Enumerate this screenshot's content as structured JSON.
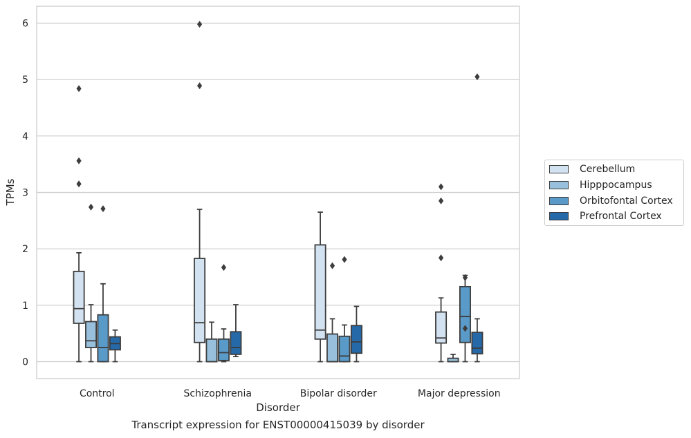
{
  "caption": "Transcript expression for ENST00000415039 by disorder",
  "chart_data": {
    "type": "box",
    "xlabel": "Disorder",
    "ylabel": "TPMs",
    "ylim": [
      -0.3,
      6.3
    ],
    "yticks": [
      0,
      1,
      2,
      3,
      4,
      5,
      6
    ],
    "grid": "horizontal",
    "legend_position": "right",
    "categories": [
      "Control",
      "Schizophrenia",
      "Bipolar disorder",
      "Major depression"
    ],
    "series": [
      {
        "name": "Cerebellum",
        "color": "#d3e2f1",
        "boxes": [
          {
            "whislo": 0,
            "q1": 0.68,
            "med": 0.94,
            "q3": 1.6,
            "whishi": 1.93,
            "fliers": [
              3.15,
              3.56,
              4.84
            ]
          },
          {
            "whislo": 0,
            "q1": 0.34,
            "med": 0.69,
            "q3": 1.83,
            "whishi": 2.7,
            "fliers": [
              4.89,
              5.98
            ]
          },
          {
            "whislo": 0,
            "q1": 0.4,
            "med": 0.56,
            "q3": 2.07,
            "whishi": 2.65,
            "fliers": []
          },
          {
            "whislo": 0,
            "q1": 0.33,
            "med": 0.42,
            "q3": 0.88,
            "whishi": 1.13,
            "fliers": [
              1.84,
              2.85,
              3.1
            ]
          }
        ]
      },
      {
        "name": "Hipppocampus",
        "color": "#98c0dc",
        "boxes": [
          {
            "whislo": 0,
            "q1": 0.25,
            "med": 0.37,
            "q3": 0.71,
            "whishi": 1.01,
            "fliers": [
              2.74
            ]
          },
          {
            "whislo": 0,
            "q1": 0.0,
            "med": 0.0,
            "q3": 0.4,
            "whishi": 0.7,
            "fliers": []
          },
          {
            "whislo": 0,
            "q1": 0.0,
            "med": 0.0,
            "q3": 0.49,
            "whishi": 0.76,
            "fliers": [
              1.7
            ]
          },
          {
            "whislo": 0,
            "q1": 0.0,
            "med": 0.0,
            "q3": 0.06,
            "whishi": 0.13,
            "fliers": []
          }
        ]
      },
      {
        "name": "Orbitofontal Cortex",
        "color": "#5a9ac9",
        "boxes": [
          {
            "whislo": 0,
            "q1": 0.0,
            "med": 0.25,
            "q3": 0.83,
            "whishi": 1.38,
            "fliers": [
              2.71
            ]
          },
          {
            "whislo": 0,
            "q1": 0.02,
            "med": 0.16,
            "q3": 0.4,
            "whishi": 0.58,
            "fliers": [
              1.67
            ]
          },
          {
            "whislo": 0,
            "q1": 0.0,
            "med": 0.1,
            "q3": 0.45,
            "whishi": 0.65,
            "fliers": [
              1.81
            ]
          },
          {
            "whislo": 0,
            "q1": 0.34,
            "med": 0.8,
            "q3": 1.33,
            "whishi": 1.53,
            "fliers": [
              0.59,
              1.49
            ]
          }
        ]
      },
      {
        "name": "Prefrontal Cortex",
        "color": "#2569a9",
        "boxes": [
          {
            "whislo": 0,
            "q1": 0.21,
            "med": 0.32,
            "q3": 0.44,
            "whishi": 0.56,
            "fliers": []
          },
          {
            "whislo": 0.09,
            "q1": 0.13,
            "med": 0.25,
            "q3": 0.53,
            "whishi": 1.01,
            "fliers": []
          },
          {
            "whislo": 0,
            "q1": 0.15,
            "med": 0.35,
            "q3": 0.64,
            "whishi": 0.98,
            "fliers": []
          },
          {
            "whislo": 0,
            "q1": 0.14,
            "med": 0.24,
            "q3": 0.52,
            "whishi": 0.76,
            "fliers": [
              5.05
            ]
          }
        ]
      }
    ]
  }
}
